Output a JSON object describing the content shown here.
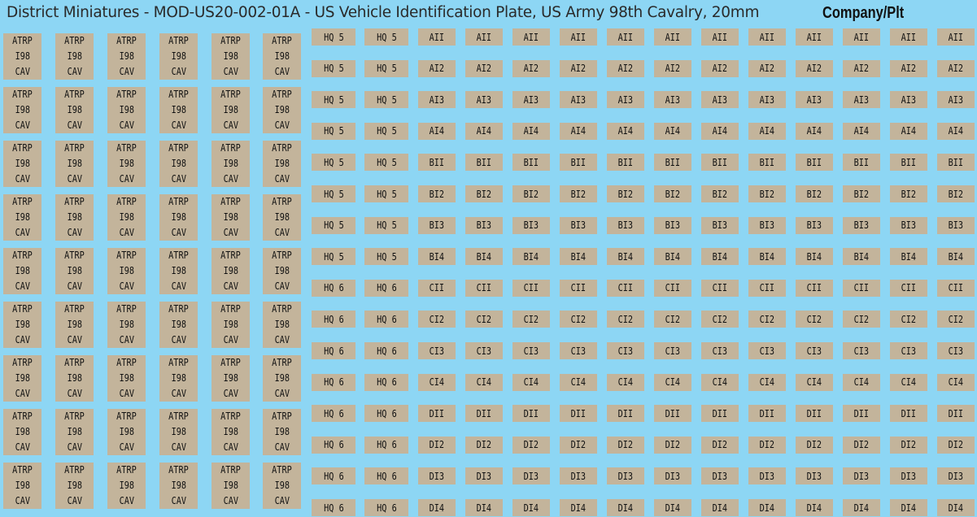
{
  "title": "District Miniatures - MOD-US20-002-01A - US Vehicle Identification Plate, US Army 98th Cavalry, 20mm",
  "heading": "Company/Plt",
  "colors": {
    "background": "#8dd6f4",
    "plate": "#c3b49b",
    "text": "#111111"
  },
  "left_plates": [
    [
      [
        "ATRP",
        "I98",
        "CAV"
      ],
      [
        "ATRP",
        "I98",
        "CAV"
      ],
      [
        "ATRP",
        "I98",
        "CAV"
      ],
      [
        "ATRP",
        "I98",
        "CAV"
      ],
      [
        "ATRP",
        "I98",
        "CAV"
      ],
      [
        "ATRP",
        "I98",
        "CAV"
      ]
    ],
    [
      [
        "ATRP",
        "I98",
        "CAV"
      ],
      [
        "ATRP",
        "I98",
        "CAV"
      ],
      [
        "ATRP",
        "I98",
        "CAV"
      ],
      [
        "ATRP",
        "I98",
        "CAV"
      ],
      [
        "ATRP",
        "I98",
        "CAV"
      ],
      [
        "ATRP",
        "I98",
        "CAV"
      ]
    ],
    [
      [
        "ATRP",
        "I98",
        "CAV"
      ],
      [
        "ATRP",
        "I98",
        "CAV"
      ],
      [
        "ATRP",
        "I98",
        "CAV"
      ],
      [
        "ATRP",
        "I98",
        "CAV"
      ],
      [
        "ATRP",
        "I98",
        "CAV"
      ],
      [
        "ATRP",
        "I98",
        "CAV"
      ]
    ],
    [
      [
        "ATRP",
        "I98",
        "CAV"
      ],
      [
        "ATRP",
        "I98",
        "CAV"
      ],
      [
        "ATRP",
        "I98",
        "CAV"
      ],
      [
        "ATRP",
        "I98",
        "CAV"
      ],
      [
        "ATRP",
        "I98",
        "CAV"
      ],
      [
        "ATRP",
        "I98",
        "CAV"
      ]
    ],
    [
      [
        "ATRP",
        "I98",
        "CAV"
      ],
      [
        "ATRP",
        "I98",
        "CAV"
      ],
      [
        "ATRP",
        "I98",
        "CAV"
      ],
      [
        "ATRP",
        "I98",
        "CAV"
      ],
      [
        "ATRP",
        "I98",
        "CAV"
      ],
      [
        "ATRP",
        "I98",
        "CAV"
      ]
    ],
    [
      [
        "ATRP",
        "I98",
        "CAV"
      ],
      [
        "ATRP",
        "I98",
        "CAV"
      ],
      [
        "ATRP",
        "I98",
        "CAV"
      ],
      [
        "ATRP",
        "I98",
        "CAV"
      ],
      [
        "ATRP",
        "I98",
        "CAV"
      ],
      [
        "ATRP",
        "I98",
        "CAV"
      ]
    ],
    [
      [
        "ATRP",
        "I98",
        "CAV"
      ],
      [
        "ATRP",
        "I98",
        "CAV"
      ],
      [
        "ATRP",
        "I98",
        "CAV"
      ],
      [
        "ATRP",
        "I98",
        "CAV"
      ],
      [
        "ATRP",
        "I98",
        "CAV"
      ],
      [
        "ATRP",
        "I98",
        "CAV"
      ]
    ],
    [
      [
        "ATRP",
        "I98",
        "CAV"
      ],
      [
        "ATRP",
        "I98",
        "CAV"
      ],
      [
        "ATRP",
        "I98",
        "CAV"
      ],
      [
        "ATRP",
        "I98",
        "CAV"
      ],
      [
        "ATRP",
        "I98",
        "CAV"
      ],
      [
        "ATRP",
        "I98",
        "CAV"
      ]
    ],
    [
      [
        "ATRP",
        "I98",
        "CAV"
      ],
      [
        "ATRP",
        "I98",
        "CAV"
      ],
      [
        "ATRP",
        "I98",
        "CAV"
      ],
      [
        "ATRP",
        "I98",
        "CAV"
      ],
      [
        "ATRP",
        "I98",
        "CAV"
      ],
      [
        "ATRP",
        "I98",
        "CAV"
      ]
    ]
  ],
  "right_rows": [
    [
      "HQ 5",
      "HQ 5",
      "AII",
      "AII",
      "AII",
      "AII",
      "AII",
      "AII",
      "AII",
      "AII",
      "AII",
      "AII",
      "AII",
      "AII"
    ],
    [
      "HQ 5",
      "HQ 5",
      "AI2",
      "AI2",
      "AI2",
      "AI2",
      "AI2",
      "AI2",
      "AI2",
      "AI2",
      "AI2",
      "AI2",
      "AI2",
      "AI2"
    ],
    [
      "HQ 5",
      "HQ 5",
      "AI3",
      "AI3",
      "AI3",
      "AI3",
      "AI3",
      "AI3",
      "AI3",
      "AI3",
      "AI3",
      "AI3",
      "AI3",
      "AI3"
    ],
    [
      "HQ 5",
      "HQ 5",
      "AI4",
      "AI4",
      "AI4",
      "AI4",
      "AI4",
      "AI4",
      "AI4",
      "AI4",
      "AI4",
      "AI4",
      "AI4",
      "AI4"
    ],
    [
      "HQ 5",
      "HQ 5",
      "BII",
      "BII",
      "BII",
      "BII",
      "BII",
      "BII",
      "BII",
      "BII",
      "BII",
      "BII",
      "BII",
      "BII"
    ],
    [
      "HQ 5",
      "HQ 5",
      "BI2",
      "BI2",
      "BI2",
      "BI2",
      "BI2",
      "BI2",
      "BI2",
      "BI2",
      "BI2",
      "BI2",
      "BI2",
      "BI2"
    ],
    [
      "HQ 5",
      "HQ 5",
      "BI3",
      "BI3",
      "BI3",
      "BI3",
      "BI3",
      "BI3",
      "BI3",
      "BI3",
      "BI3",
      "BI3",
      "BI3",
      "BI3"
    ],
    [
      "HQ 5",
      "HQ 5",
      "BI4",
      "BI4",
      "BI4",
      "BI4",
      "BI4",
      "BI4",
      "BI4",
      "BI4",
      "BI4",
      "BI4",
      "BI4",
      "BI4"
    ],
    [
      "HQ 6",
      "HQ 6",
      "CII",
      "CII",
      "CII",
      "CII",
      "CII",
      "CII",
      "CII",
      "CII",
      "CII",
      "CII",
      "CII",
      "CII"
    ],
    [
      "HQ 6",
      "HQ 6",
      "CI2",
      "CI2",
      "CI2",
      "CI2",
      "CI2",
      "CI2",
      "CI2",
      "CI2",
      "CI2",
      "CI2",
      "CI2",
      "CI2"
    ],
    [
      "HQ 6",
      "HQ 6",
      "CI3",
      "CI3",
      "CI3",
      "CI3",
      "CI3",
      "CI3",
      "CI3",
      "CI3",
      "CI3",
      "CI3",
      "CI3",
      "CI3"
    ],
    [
      "HQ 6",
      "HQ 6",
      "CI4",
      "CI4",
      "CI4",
      "CI4",
      "CI4",
      "CI4",
      "CI4",
      "CI4",
      "CI4",
      "CI4",
      "CI4",
      "CI4"
    ],
    [
      "HQ 6",
      "HQ 6",
      "DII",
      "DII",
      "DII",
      "DII",
      "DII",
      "DII",
      "DII",
      "DII",
      "DII",
      "DII",
      "DII",
      "DII"
    ],
    [
      "HQ 6",
      "HQ 6",
      "DI2",
      "DI2",
      "DI2",
      "DI2",
      "DI2",
      "DI2",
      "DI2",
      "DI2",
      "DI2",
      "DI2",
      "DI2",
      "DI2"
    ],
    [
      "HQ 6",
      "HQ 6",
      "DI3",
      "DI3",
      "DI3",
      "DI3",
      "DI3",
      "DI3",
      "DI3",
      "DI3",
      "DI3",
      "DI3",
      "DI3",
      "DI3"
    ],
    [
      "HQ 6",
      "HQ 6",
      "DI4",
      "DI4",
      "DI4",
      "DI4",
      "DI4",
      "DI4",
      "DI4",
      "DI4",
      "DI4",
      "DI4",
      "DI4",
      "DI4"
    ]
  ]
}
